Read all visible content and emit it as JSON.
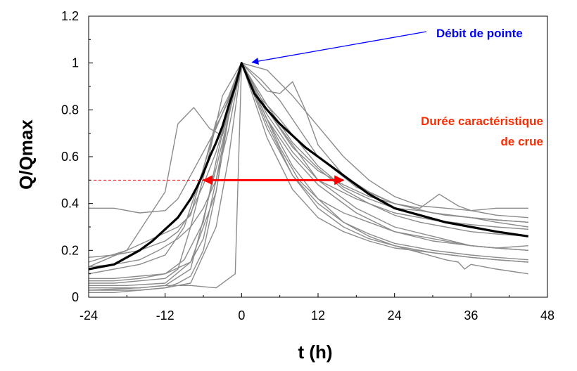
{
  "chart_data": {
    "type": "line",
    "title": "",
    "xlabel": "t (h)",
    "ylabel": "Q/Qmax",
    "xlim": [
      -24,
      48
    ],
    "ylim": [
      0,
      1.2
    ],
    "xticks": [
      -24,
      -12,
      0,
      12,
      24,
      36,
      48
    ],
    "yticks": [
      0,
      0.2,
      0.4,
      0.6,
      0.8,
      1,
      1.2
    ],
    "xtick_labels": [
      "-24",
      "-12",
      "0",
      "12",
      "24",
      "36",
      "48"
    ],
    "ytick_labels": [
      "0",
      "0.2",
      "0.4",
      "0.6",
      "0.8",
      "1",
      "1.2"
    ],
    "grid": false,
    "colors": {
      "events": "#8c8c8c",
      "mean": "#000000",
      "peak_annotation": "#0000ff",
      "duration_annotation": "#ff0000"
    },
    "mean_series": {
      "x": [
        -24,
        -22,
        -20,
        -18,
        -16,
        -14,
        -12,
        -10,
        -8,
        -7,
        -6,
        -5,
        -4,
        -3,
        -2,
        -1,
        0,
        2,
        4,
        6,
        8,
        10,
        12,
        14,
        16,
        18,
        20,
        24,
        28,
        32,
        36,
        40,
        45
      ],
      "y": [
        0.12,
        0.13,
        0.14,
        0.17,
        0.2,
        0.24,
        0.29,
        0.34,
        0.42,
        0.47,
        0.53,
        0.6,
        0.66,
        0.73,
        0.82,
        0.9,
        1.0,
        0.87,
        0.8,
        0.74,
        0.69,
        0.64,
        0.6,
        0.56,
        0.52,
        0.48,
        0.44,
        0.38,
        0.35,
        0.32,
        0.3,
        0.28,
        0.26
      ]
    },
    "series": [
      {
        "x": [
          -24,
          -18,
          -12,
          -8,
          -4,
          -2,
          0,
          4,
          8,
          12,
          18,
          24,
          30,
          36,
          40,
          45
        ],
        "y": [
          0.05,
          0.05,
          0.06,
          0.15,
          0.45,
          0.78,
          1.0,
          0.8,
          0.65,
          0.5,
          0.38,
          0.3,
          0.26,
          0.22,
          0.21,
          0.2
        ]
      },
      {
        "x": [
          -24,
          -18,
          -12,
          -10,
          -7.5,
          -5,
          -3,
          0,
          4,
          8,
          12,
          18,
          24,
          30,
          36,
          40,
          45
        ],
        "y": [
          0.13,
          0.2,
          0.45,
          0.74,
          0.81,
          0.72,
          0.69,
          1.0,
          0.78,
          0.62,
          0.5,
          0.42,
          0.36,
          0.33,
          0.31,
          0.3,
          0.29
        ]
      },
      {
        "x": [
          -24,
          -20,
          -16,
          -12,
          -8,
          -4,
          -1,
          0,
          4,
          8,
          12,
          18,
          24,
          30,
          36,
          40,
          45
        ],
        "y": [
          0.04,
          0.04,
          0.04,
          0.05,
          0.05,
          0.04,
          0.1,
          1.0,
          0.76,
          0.6,
          0.48,
          0.36,
          0.28,
          0.24,
          0.22,
          0.21,
          0.2
        ]
      },
      {
        "x": [
          -24,
          -20,
          -16,
          -12,
          -10,
          -8,
          -6,
          -4,
          -2,
          0,
          4,
          8,
          12,
          16,
          20,
          24,
          28,
          32,
          36,
          40,
          45
        ],
        "y": [
          0.38,
          0.38,
          0.36,
          0.37,
          0.42,
          0.52,
          0.62,
          0.72,
          0.85,
          1.0,
          0.97,
          0.86,
          0.73,
          0.6,
          0.5,
          0.43,
          0.39,
          0.38,
          0.37,
          0.38,
          0.38
        ]
      },
      {
        "x": [
          -24,
          -16,
          -12,
          -8,
          -4,
          0,
          4,
          6,
          8,
          10,
          12,
          16,
          20,
          24,
          30,
          36,
          40,
          45
        ],
        "y": [
          0.03,
          0.04,
          0.05,
          0.12,
          0.55,
          1.0,
          0.88,
          0.87,
          0.92,
          0.8,
          0.65,
          0.52,
          0.45,
          0.4,
          0.36,
          0.34,
          0.33,
          0.32
        ]
      },
      {
        "x": [
          -24,
          -18,
          -14,
          -10,
          -8,
          -6,
          -4,
          -2,
          0,
          3,
          6,
          9,
          12,
          18,
          24,
          30,
          36,
          40,
          45
        ],
        "y": [
          0.15,
          0.2,
          0.25,
          0.3,
          0.35,
          0.55,
          0.75,
          0.86,
          1.0,
          0.93,
          0.84,
          0.72,
          0.6,
          0.47,
          0.4,
          0.36,
          0.34,
          0.33,
          0.32
        ]
      },
      {
        "x": [
          -24,
          -20,
          -16,
          -12,
          -9,
          -6,
          -4,
          -2,
          0,
          4,
          8,
          12,
          16,
          20,
          24,
          30,
          36,
          40,
          45
        ],
        "y": [
          0.1,
          0.12,
          0.14,
          0.18,
          0.3,
          0.55,
          0.73,
          0.84,
          1.0,
          0.74,
          0.52,
          0.4,
          0.32,
          0.27,
          0.23,
          0.2,
          0.18,
          0.17,
          0.16
        ]
      },
      {
        "x": [
          -24,
          -20,
          -16,
          -12,
          -10,
          -8,
          -5,
          -3,
          0,
          4,
          8,
          12,
          16,
          20,
          24,
          30,
          36,
          40,
          45
        ],
        "y": [
          0.06,
          0.06,
          0.07,
          0.08,
          0.12,
          0.3,
          0.62,
          0.86,
          1.0,
          0.72,
          0.52,
          0.38,
          0.3,
          0.25,
          0.22,
          0.19,
          0.17,
          0.16,
          0.15
        ]
      },
      {
        "x": [
          -24,
          -20,
          -16,
          -12,
          -8,
          -6,
          -4,
          -2,
          0,
          3,
          6,
          9,
          12,
          16,
          20,
          24,
          28,
          32,
          36,
          40,
          45
        ],
        "y": [
          0.08,
          0.08,
          0.09,
          0.1,
          0.15,
          0.25,
          0.5,
          0.78,
          1.0,
          0.85,
          0.76,
          0.66,
          0.56,
          0.47,
          0.42,
          0.38,
          0.37,
          0.35,
          0.34,
          0.32,
          0.3
        ]
      },
      {
        "x": [
          -24,
          -20,
          -16,
          -12,
          -8,
          -4,
          -2,
          0,
          4,
          8,
          12,
          16,
          20,
          24,
          30,
          36,
          40,
          45
        ],
        "y": [
          0.03,
          0.03,
          0.03,
          0.04,
          0.06,
          0.3,
          0.6,
          1.0,
          0.68,
          0.46,
          0.34,
          0.28,
          0.24,
          0.21,
          0.19,
          0.17,
          0.16,
          0.15
        ]
      },
      {
        "x": [
          -24,
          -20,
          -16,
          -12,
          -9,
          -6,
          -4,
          -2,
          0,
          4,
          8,
          12,
          16,
          20,
          24,
          28,
          31,
          34,
          36,
          38,
          40,
          45
        ],
        "y": [
          0.07,
          0.07,
          0.08,
          0.1,
          0.16,
          0.32,
          0.58,
          0.82,
          1.0,
          0.8,
          0.64,
          0.54,
          0.48,
          0.43,
          0.4,
          0.38,
          0.44,
          0.39,
          0.37,
          0.36,
          0.35,
          0.34
        ]
      },
      {
        "x": [
          -24,
          -20,
          -16,
          -12,
          -10,
          -8,
          -6,
          -4,
          -2,
          0,
          3,
          6,
          9,
          12,
          16,
          20,
          24,
          30,
          34,
          36,
          40,
          45
        ],
        "y": [
          0.17,
          0.18,
          0.2,
          0.24,
          0.28,
          0.36,
          0.48,
          0.62,
          0.8,
          1.0,
          0.82,
          0.64,
          0.5,
          0.42,
          0.36,
          0.32,
          0.28,
          0.25,
          0.23,
          0.22,
          0.21,
          0.22
        ]
      },
      {
        "x": [
          -24,
          -20,
          -16,
          -12,
          -10,
          -8,
          -6,
          -4,
          -2,
          0,
          4,
          8,
          12,
          16,
          20,
          24,
          28,
          32,
          34,
          35,
          36,
          40,
          45
        ],
        "y": [
          0.02,
          0.02,
          0.03,
          0.04,
          0.06,
          0.09,
          0.2,
          0.45,
          0.78,
          1.0,
          0.76,
          0.56,
          0.42,
          0.32,
          0.26,
          0.22,
          0.19,
          0.16,
          0.15,
          0.12,
          0.14,
          0.12,
          0.1
        ]
      },
      {
        "x": [
          -24,
          -20,
          -16,
          -13,
          -10,
          -8,
          -6,
          -4,
          -2,
          0,
          4,
          8,
          12,
          16,
          20,
          24,
          28,
          32,
          36,
          40,
          45
        ],
        "y": [
          0.13,
          0.14,
          0.16,
          0.2,
          0.25,
          0.3,
          0.38,
          0.5,
          0.72,
          1.0,
          0.82,
          0.66,
          0.55,
          0.46,
          0.4,
          0.35,
          0.32,
          0.3,
          0.28,
          0.27,
          0.26
        ]
      }
    ],
    "annotations": [
      {
        "text": "Débit de pointe",
        "arrow_to": {
          "x": 0,
          "y": 1.0
        }
      },
      {
        "text_lines": [
          "Durée caractéristique",
          "de crue"
        ],
        "double_arrow": {
          "x1": -6,
          "x2": 16,
          "y": 0.5
        },
        "dashed_reference": {
          "x1": -24,
          "x2": -6,
          "y": 0.5
        }
      }
    ]
  }
}
